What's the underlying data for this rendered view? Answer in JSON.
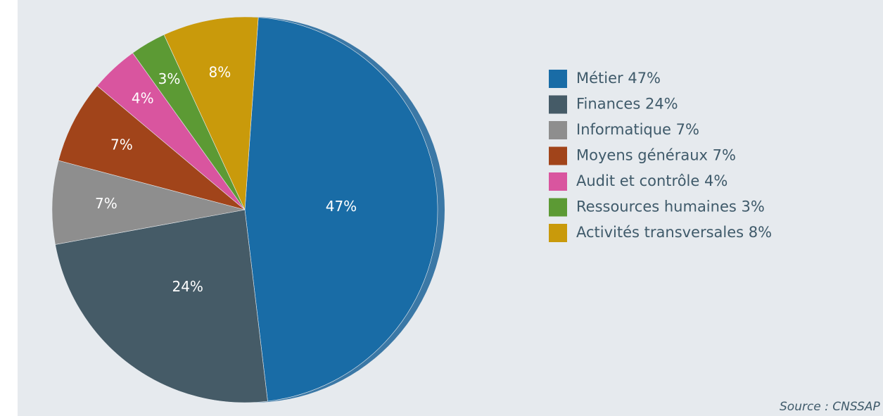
{
  "chart_data": {
    "type": "pie",
    "categories": [
      "Métier 47%",
      "Finances 24%",
      "Informatique 7%",
      "Moyens généraux 7%",
      "Audit et contrôle 4%",
      "Ressources humaines 3%",
      "Activités transversales 8%"
    ],
    "values": [
      47,
      24,
      7,
      7,
      4,
      3,
      8
    ],
    "value_labels": [
      "47%",
      "24%",
      "7%",
      "7%",
      "4%",
      "3%",
      "8%"
    ],
    "colors": [
      "#196ca6",
      "#455b67",
      "#8e8e8e",
      "#a1441a",
      "#d9559f",
      "#5c9a34",
      "#c99a0b"
    ],
    "source": "Source : CNSSAP"
  }
}
